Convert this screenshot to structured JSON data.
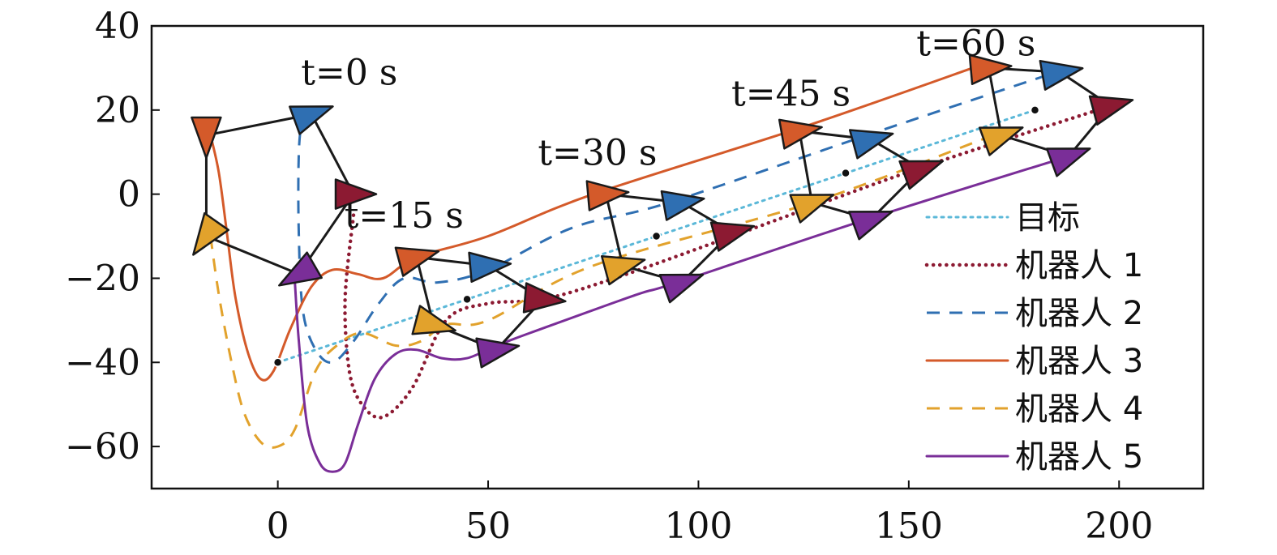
{
  "chart_data": {
    "type": "line",
    "title": "",
    "xlabel": "",
    "ylabel": "",
    "xlim": [
      -30,
      220
    ],
    "ylim": [
      -70,
      40
    ],
    "xticks": [
      0,
      50,
      100,
      150,
      200
    ],
    "yticks": [
      40,
      20,
      0,
      -20,
      -40,
      -60
    ],
    "ytick_labels": [
      "40",
      "20",
      "0",
      "−20",
      "−40",
      "−60"
    ],
    "grid": false,
    "legend_position": "right",
    "series": [
      {
        "name": "目标",
        "style": "dotted",
        "color": "#5bb8d8",
        "points": [
          [
            0,
            -40
          ],
          [
            45,
            -25
          ],
          [
            90,
            -10
          ],
          [
            135,
            5
          ],
          [
            180,
            20
          ]
        ]
      },
      {
        "name": "机器人 1",
        "style": "dotted-heavy",
        "color": "#8c1a32",
        "points": [
          [
            18,
            -5
          ],
          [
            16,
            -25
          ],
          [
            17,
            -42
          ],
          [
            20,
            -50
          ],
          [
            25,
            -53
          ],
          [
            32,
            -46
          ],
          [
            40,
            -30
          ],
          [
            50,
            -26
          ],
          [
            63,
            -25
          ],
          [
            80,
            -20
          ],
          [
            108,
            -10
          ],
          [
            152,
            6
          ],
          [
            198,
            21
          ]
        ]
      },
      {
        "name": "机器人 2",
        "style": "dashed",
        "color": "#2f6fb2",
        "points": [
          [
            6,
            20
          ],
          [
            5,
            10
          ],
          [
            5,
            -10
          ],
          [
            6,
            -28
          ],
          [
            9,
            -37
          ],
          [
            13,
            -40
          ],
          [
            18,
            -35
          ],
          [
            24,
            -26
          ],
          [
            30,
            -20
          ],
          [
            38,
            -21
          ],
          [
            50,
            -18
          ],
          [
            70,
            -8
          ],
          [
            93,
            -2
          ],
          [
            140,
            14
          ],
          [
            185,
            29
          ]
        ]
      },
      {
        "name": "机器人 3",
        "style": "solid",
        "color": "#d45a2a",
        "points": [
          [
            -16,
            14
          ],
          [
            -14,
            5
          ],
          [
            -12,
            -10
          ],
          [
            -10,
            -25
          ],
          [
            -7,
            -38
          ],
          [
            -4,
            -44
          ],
          [
            -1,
            -42
          ],
          [
            3,
            -32
          ],
          [
            8,
            -22
          ],
          [
            13,
            -18
          ],
          [
            19,
            -19
          ],
          [
            25,
            -20
          ],
          [
            33,
            -15
          ],
          [
            50,
            -10
          ],
          [
            75,
            0
          ],
          [
            125,
            16
          ],
          [
            168,
            31
          ]
        ]
      },
      {
        "name": "机器人 4",
        "style": "dashed",
        "color": "#e2a22c",
        "points": [
          [
            -16,
            -10
          ],
          [
            -14,
            -24
          ],
          [
            -11,
            -40
          ],
          [
            -8,
            -52
          ],
          [
            -4,
            -59
          ],
          [
            0,
            -60
          ],
          [
            4,
            -56
          ],
          [
            9,
            -42
          ],
          [
            14,
            -36
          ],
          [
            20,
            -33
          ],
          [
            28,
            -36
          ],
          [
            34,
            -35
          ],
          [
            40,
            -31
          ],
          [
            50,
            -30
          ],
          [
            75,
            -17
          ],
          [
            127,
            -2
          ],
          [
            170,
            14
          ]
        ]
      },
      {
        "name": "机器人 5",
        "style": "solid",
        "color": "#7a2e98",
        "points": [
          [
            4,
            -20
          ],
          [
            5,
            -35
          ],
          [
            7,
            -55
          ],
          [
            10,
            -64
          ],
          [
            13,
            -66
          ],
          [
            16,
            -64
          ],
          [
            19,
            -55
          ],
          [
            23,
            -44
          ],
          [
            28,
            -38
          ],
          [
            33,
            -37
          ],
          [
            39,
            -39
          ],
          [
            45,
            -39
          ],
          [
            52,
            -36
          ],
          [
            60,
            -33
          ],
          [
            85,
            -24
          ],
          [
            95,
            -21
          ],
          [
            140,
            -6
          ],
          [
            188,
            9
          ]
        ]
      }
    ],
    "time_labels": [
      {
        "text": "t=0 s",
        "x": 17,
        "y": 26
      },
      {
        "text": "t=15 s",
        "x": 30,
        "y": -8
      },
      {
        "text": "t=30 s",
        "x": 76,
        "y": 7
      },
      {
        "text": "t=45 s",
        "x": 122,
        "y": 21
      },
      {
        "text": "t=60 s",
        "x": 166,
        "y": 33
      }
    ],
    "formations": [
      {
        "time": "t=0 s",
        "center": [
          0,
          -40
        ],
        "robots": [
          {
            "x": 18,
            "y": 0,
            "angle": 0
          },
          {
            "x": 8,
            "y": 19,
            "angle": 20
          },
          {
            "x": -17,
            "y": 14,
            "angle": -90
          },
          {
            "x": -17,
            "y": -10,
            "angle": -125
          },
          {
            "x": 5,
            "y": -19,
            "angle": -150
          }
        ]
      },
      {
        "time": "t=15 s",
        "center": [
          45,
          -25
        ],
        "robots": [
          {
            "x": 63,
            "y": -25,
            "angle": -5
          },
          {
            "x": 50,
            "y": -17,
            "angle": 5
          },
          {
            "x": 33,
            "y": -15,
            "angle": 15
          },
          {
            "x": 37,
            "y": -31,
            "angle": -15
          },
          {
            "x": 52,
            "y": -37,
            "angle": 10
          }
        ]
      },
      {
        "time": "t=30 s",
        "center": [
          90,
          -10
        ],
        "robots": [
          {
            "x": 108,
            "y": -9,
            "angle": 15
          },
          {
            "x": 96,
            "y": -2,
            "angle": 10
          },
          {
            "x": 78,
            "y": 0,
            "angle": 5
          },
          {
            "x": 82,
            "y": -17,
            "angle": 15
          },
          {
            "x": 96,
            "y": -21,
            "angle": 20
          }
        ]
      },
      {
        "time": "t=45 s",
        "center": [
          135,
          5
        ],
        "robots": [
          {
            "x": 153,
            "y": 6,
            "angle": 20
          },
          {
            "x": 141,
            "y": 13,
            "angle": 15
          },
          {
            "x": 124,
            "y": 15,
            "angle": 10
          },
          {
            "x": 127,
            "y": -2,
            "angle": 20
          },
          {
            "x": 141,
            "y": -6,
            "angle": 20
          }
        ]
      },
      {
        "time": "t=60 s",
        "center": [
          180,
          20
        ],
        "robots": [
          {
            "x": 198,
            "y": 21,
            "angle": 15
          },
          {
            "x": 186,
            "y": 29,
            "angle": 10
          },
          {
            "x": 169,
            "y": 30,
            "angle": 5
          },
          {
            "x": 172,
            "y": 14,
            "angle": 20
          },
          {
            "x": 188,
            "y": 9,
            "angle": 20
          }
        ]
      }
    ]
  }
}
